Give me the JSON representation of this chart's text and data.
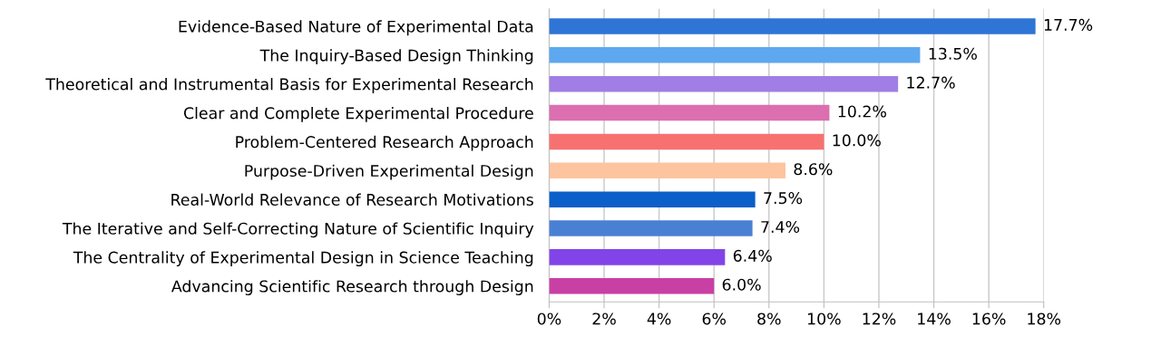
{
  "chart_data": {
    "type": "bar",
    "orientation": "horizontal",
    "categories": [
      "Evidence-Based Nature of Experimental Data",
      "The Inquiry-Based Design Thinking",
      "Theoretical and Instrumental Basis for Experimental Research",
      "Clear and Complete Experimental Procedure",
      "Problem-Centered Research Approach",
      "Purpose-Driven Experimental Design",
      "Real-World Relevance of Research Motivations",
      "The Iterative and Self-Correcting Nature of Scientific Inquiry",
      "The Centrality of Experimental Design in Science Teaching",
      "Advancing Scientific Research through Design"
    ],
    "values": [
      17.7,
      13.5,
      12.7,
      10.2,
      10.0,
      8.6,
      7.5,
      7.4,
      6.4,
      6.0
    ],
    "value_labels": [
      "17.7%",
      "13.5%",
      "12.7%",
      "10.2%",
      "10.0%",
      "8.6%",
      "7.5%",
      "7.4%",
      "6.4%",
      "6.0%"
    ],
    "colors": [
      "#2e75d6",
      "#5ea8ef",
      "#a07ee6",
      "#db6fb0",
      "#f87171",
      "#fdc4a0",
      "#0a5fc8",
      "#4a80d4",
      "#8244e8",
      "#c940a5"
    ],
    "xlim": [
      0,
      18
    ],
    "xticks": [
      {
        "value": 0,
        "label": "0%"
      },
      {
        "value": 2,
        "label": "2%"
      },
      {
        "value": 4,
        "label": "4%"
      },
      {
        "value": 6,
        "label": "6%"
      },
      {
        "value": 8,
        "label": "8%"
      },
      {
        "value": 10,
        "label": "10%"
      },
      {
        "value": 12,
        "label": "12%"
      },
      {
        "value": 14,
        "label": "14%"
      },
      {
        "value": 16,
        "label": "16%"
      },
      {
        "value": 18,
        "label": "18%"
      }
    ],
    "grid": "x",
    "legend": false
  }
}
